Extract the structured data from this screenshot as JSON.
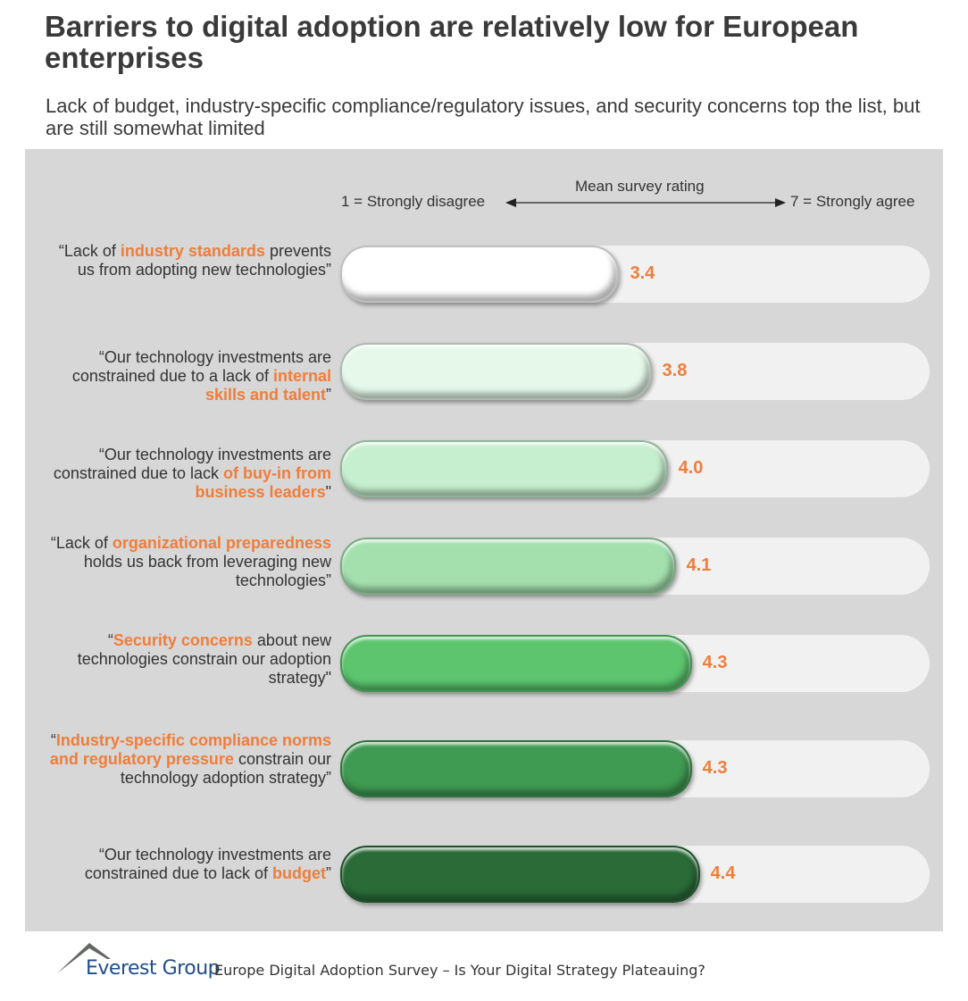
{
  "title": "Barriers to digital adoption are relatively low for European enterprises",
  "subtitle": "Lack of budget, industry-specific compliance/regulatory issues, and security concerns top the list, but are still somewhat limited",
  "axis": {
    "center_label": "Mean survey rating",
    "left_label": "1 = Strongly disagree",
    "right_label": "7 = Strongly agree"
  },
  "chart_data": {
    "type": "bar",
    "orientation": "horizontal",
    "xlim": [
      1,
      7
    ],
    "categories": [
      "“Lack of industry standards prevents us from adopting new technologies”",
      "“Our technology investments are constrained due to a lack of internal skills and talent”",
      "“Our technology investments are constrained due to lack of buy-in from business leaders\"",
      "“Lack of organizational preparedness holds us back from leveraging new technologies”",
      "“Security concerns about new technologies constrain our adoption strategy\"",
      "“Industry-specific compliance norms and regulatory pressure constrain our technology adoption strategy”",
      "“Our technology investments are constrained due to lack of budget”"
    ],
    "values": [
      3.4,
      3.8,
      4.0,
      4.1,
      4.3,
      4.3,
      4.4
    ],
    "value_labels": [
      "3.4",
      "3.8",
      "4.0",
      "4.1",
      "4.3",
      "4.3",
      "4.4"
    ],
    "label_parts": [
      [
        {
          "t": "“Lack of ",
          "h": false
        },
        {
          "t": "industry standards",
          "h": true
        },
        {
          "t": " prevents us from adopting new technologies”",
          "h": false
        }
      ],
      [
        {
          "t": "“Our technology investments are constrained due to a lack of ",
          "h": false
        },
        {
          "t": "internal skills and talent",
          "h": true
        },
        {
          "t": "”",
          "h": false
        }
      ],
      [
        {
          "t": "“Our technology investments are constrained due to lack ",
          "h": false
        },
        {
          "t": "of buy-in from business leaders",
          "h": true
        },
        {
          "t": "\"",
          "h": false
        }
      ],
      [
        {
          "t": "“Lack of ",
          "h": false
        },
        {
          "t": "organizational preparedness",
          "h": true
        },
        {
          "t": " holds us back from leveraging new technologies”",
          "h": false
        }
      ],
      [
        {
          "t": "“",
          "h": false
        },
        {
          "t": "Security concerns",
          "h": true
        },
        {
          "t": " about new technologies constrain our adoption strategy\"",
          "h": false
        }
      ],
      [
        {
          "t": "“",
          "h": false
        },
        {
          "t": "Industry-specific compliance norms and regulatory pressure",
          "h": true
        },
        {
          "t": " constrain our technology adoption strategy”",
          "h": false
        }
      ],
      [
        {
          "t": "“Our technology investments are constrained due to lack of ",
          "h": false
        },
        {
          "t": "budget",
          "h": true
        },
        {
          "t": "”",
          "h": false
        }
      ]
    ],
    "bar_colors": [
      "#ffffff",
      "#e6f8ea",
      "#c6efcf",
      "#a4e0ae",
      "#5cc56e",
      "#3f9a52",
      "#2a6b38"
    ],
    "value_color": "#ef7d3a"
  },
  "footer": {
    "logo_text": "Everest Group",
    "source": "Europe Digital Adoption Survey – Is Your Digital Strategy Plateauing?"
  }
}
